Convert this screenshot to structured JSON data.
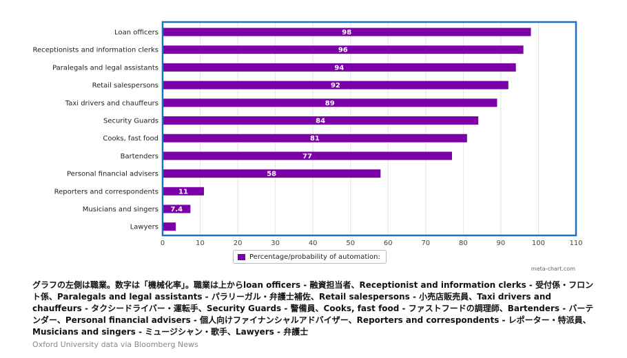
{
  "chart_data": {
    "type": "bar",
    "orientation": "horizontal",
    "categories": [
      "Loan officers",
      "Receptionists and information clerks",
      "Paralegals and legal assistants",
      "Retail salespersons",
      "Taxi drivers and chauffeurs",
      "Security Guards",
      "Cooks, fast food",
      "Bartenders",
      "Personal financial advisers",
      "Reporters and correspondents",
      "Musicians and singers",
      "Lawyers"
    ],
    "values": [
      98,
      96,
      94,
      92,
      89,
      84,
      81,
      77,
      58,
      11,
      7.4,
      3.5
    ],
    "data_labels": [
      "98",
      "96",
      "94",
      "92",
      "89",
      "84",
      "81",
      "77",
      "58",
      "11",
      "7.4",
      ""
    ],
    "xlim": [
      0,
      110
    ],
    "xticks": [
      "0",
      "10",
      "20",
      "30",
      "40",
      "50",
      "60",
      "70",
      "80",
      "90",
      "100",
      "110"
    ],
    "grid": true,
    "legend": {
      "label": "Percentage/probability of automation:",
      "placement": "bottom-center"
    },
    "colors": {
      "bar": "#7b00a8",
      "frame": "#1a6fc7",
      "grid": "#e3e3e3"
    },
    "credit": "meta-chart.com"
  },
  "caption": "グラフの左側は職業。数字は「機械化率」。職業は上からloan officers - 融資担当者、Receptionist and information clerks - 受付係・フロント係、Paralegals and legal assistants - パラリーガル・弁護士補佐、Retail salespersons - 小売店販売員、Taxi drivers and chauffeurs - タクシードライバー・運転手、Security Guards - 警備員、Cooks, fast food - ファストフードの調理師、Bartenders - バーテンダー、Personal financial advisers - 個人向けファイナンシャルアドバイザー、Reporters and correspondents - レポーター・特派員、Musicians and singers - ミュージシャン・歌手、Lawyers - 弁護士",
  "source": "Oxford University data via Bloomberg News"
}
